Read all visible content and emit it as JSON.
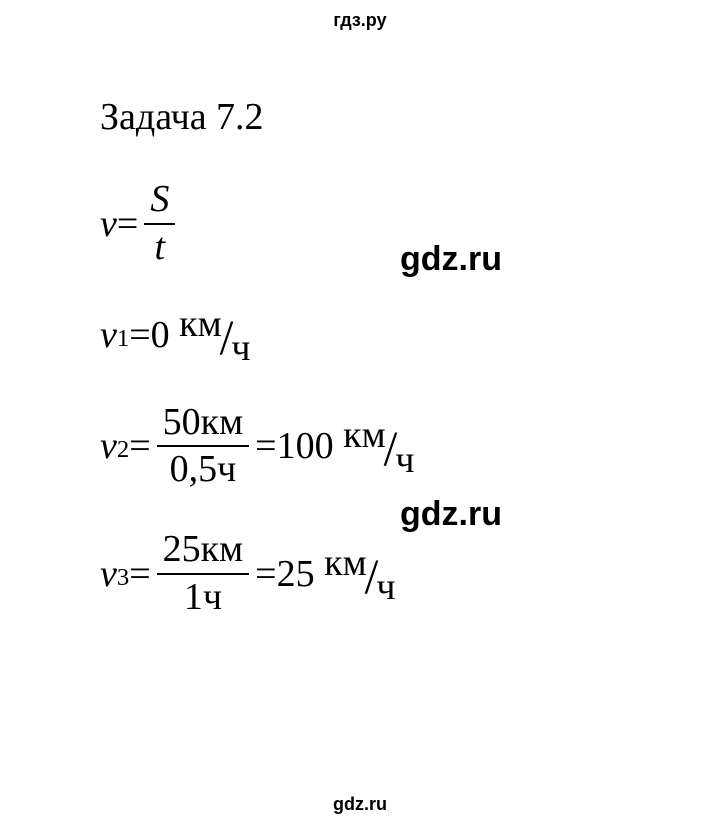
{
  "watermarks": {
    "top": "гдз.ру",
    "mid1": "gdz.ru",
    "mid2": "gdz.ru",
    "bottom": "gdz.ru"
  },
  "title": "Задача 7.2",
  "formula": {
    "lhs_var": "v",
    "eq": " = ",
    "num": "S",
    "den": "t"
  },
  "v1": {
    "var": "v",
    "sub": "1",
    "eq": " = ",
    "val": "0",
    "unit_top": "км",
    "unit_bot": "ч"
  },
  "v2": {
    "var": "v",
    "sub": "2",
    "eq1": " = ",
    "num": "50км",
    "den": "0,5ч",
    "eq2": " = ",
    "val": "100",
    "unit_top": "км",
    "unit_bot": "ч"
  },
  "v3": {
    "var": "v",
    "sub": "3",
    "eq1": " = ",
    "num": "25км",
    "den": "1ч",
    "eq2": " = ",
    "val": "25",
    "unit_top": "км",
    "unit_bot": "ч"
  },
  "style": {
    "title_fontsize": 38,
    "body_fontsize": 38,
    "watermark_top_fontsize": 18,
    "watermark_mid_fontsize": 34,
    "watermark_bottom_fontsize": 18,
    "text_color": "#000000",
    "background_color": "#ffffff"
  }
}
